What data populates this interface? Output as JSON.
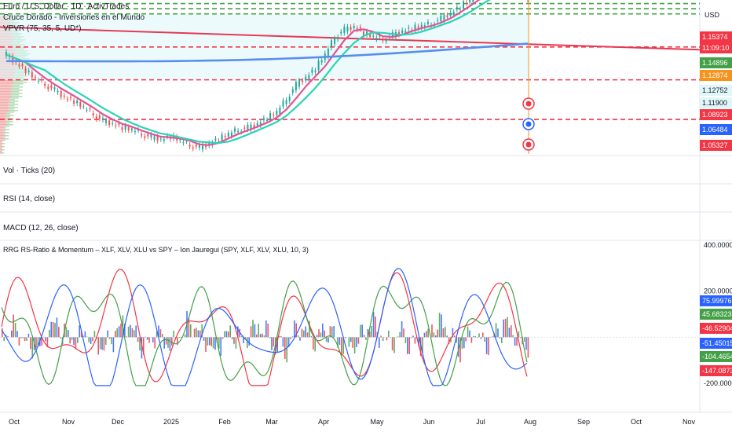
{
  "chart_data": [
    {
      "type": "candlestick",
      "title": "Euro / U.S. Dollar · 1D · ActivTrades",
      "indicators": [
        "Cruce Dorado - Inversiones en el Mundo",
        "VPVR (75, 35, 5, UD*)"
      ],
      "currency_label": "USD",
      "x_labels": [
        "Oct",
        "Nov",
        "Dec",
        "2025",
        "Feb",
        "Mar",
        "Apr",
        "May",
        "Jun",
        "Jul",
        "Aug",
        "Sep",
        "Oct",
        "Nov"
      ],
      "price_tags": [
        {
          "text": "1.15374",
          "color": "#f23645"
        },
        {
          "text": "11:09:10",
          "color": "#f23645"
        },
        {
          "text": "1.14896",
          "color": "#43a047"
        },
        {
          "text": "1.12874",
          "color": "#f7931a"
        },
        {
          "text": "1.12752",
          "color": "#e0f7fa"
        },
        {
          "text": "1.11900",
          "color": "#e0f7fa"
        },
        {
          "text": "1.08923",
          "color": "#f23645"
        },
        {
          "text": "1.06484",
          "color": "#2962ff"
        },
        {
          "text": "1.05327",
          "color": "#f23645"
        }
      ],
      "close_approx": [
        1.112,
        1.105,
        1.098,
        1.09,
        1.085,
        1.08,
        1.074,
        1.07,
        1.064,
        1.058,
        1.052,
        1.05,
        1.046,
        1.044,
        1.04,
        1.037,
        1.036,
        1.038,
        1.034,
        1.03,
        1.028,
        1.032,
        1.036,
        1.04,
        1.044,
        1.046,
        1.05,
        1.055,
        1.06,
        1.072,
        1.085,
        1.092,
        1.1,
        1.112,
        1.128,
        1.135,
        1.138,
        1.132,
        1.128,
        1.126,
        1.13,
        1.134,
        1.136,
        1.138,
        1.14,
        1.145,
        1.15,
        1.156,
        1.162,
        1.168,
        1.172,
        1.174,
        1.17,
        1.167,
        1.163
      ]
    },
    {
      "type": "line",
      "title": "RRG RS-Ratio & Momentum – XLF, XLV, XLU vs SPY – Ion Jauregui (SPY, XLF, XLV, XLU, 10, 3)",
      "y_ticks": [
        "400.00000",
        "200.00000",
        "-200.00000"
      ],
      "value_tags": [
        {
          "text": "75.99976",
          "color": "#2962ff"
        },
        {
          "text": "45.68323",
          "color": "#43a047"
        },
        {
          "text": "-46.52904",
          "color": "#f23645"
        },
        {
          "text": "-51.45015",
          "color": "#2962ff"
        },
        {
          "text": "-104.46544",
          "color": "#43a047"
        },
        {
          "text": "-147.08730",
          "color": "#f23645"
        }
      ],
      "series": [
        {
          "name": "",
          "color": "#f23645"
        },
        {
          "name": "",
          "color": "#43a047"
        },
        {
          "name": "",
          "color": "#2962ff"
        }
      ]
    }
  ],
  "panes": {
    "vol": "Vol · Ticks (20)",
    "rsi": "RSI (14, close)",
    "macd": "MACD (12, 26, close)"
  }
}
